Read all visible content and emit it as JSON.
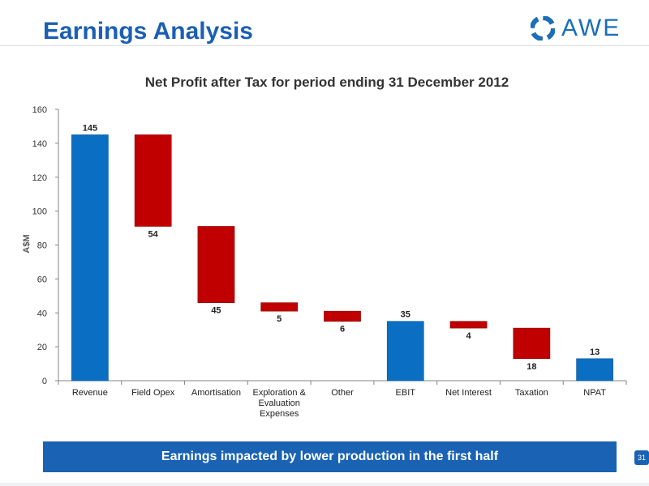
{
  "slide": {
    "title": "Earnings Analysis",
    "logo_text": "AWE",
    "banner": "Earnings impacted by lower production in the first half",
    "page_number": "31"
  },
  "colors": {
    "title": "#1a5fb4",
    "total_bar": "#0a6fc2",
    "decrease_bar": "#c00000",
    "banner": "#1a62b3"
  },
  "chart_data": {
    "type": "bar",
    "subtype": "waterfall",
    "title": "Net Profit after Tax for period ending 31 December 2012",
    "ylabel": "A$M",
    "xlabel": "",
    "ylim": [
      0,
      160
    ],
    "yticks": [
      0,
      20,
      40,
      60,
      80,
      100,
      120,
      140,
      160
    ],
    "grid": false,
    "categories": [
      [
        "Revenue"
      ],
      [
        "Field Opex"
      ],
      [
        "Amortisation"
      ],
      [
        "Exploration &",
        "Evaluation",
        "Expenses"
      ],
      [
        "Other"
      ],
      [
        "EBIT"
      ],
      [
        "Net Interest"
      ],
      [
        "Taxation"
      ],
      [
        "NPAT"
      ]
    ],
    "bars": [
      {
        "kind": "total",
        "start": 0,
        "end": 145,
        "label": "145",
        "label_pos": "above"
      },
      {
        "kind": "decrease",
        "start": 145,
        "end": 91,
        "label": "54",
        "label_pos": "below"
      },
      {
        "kind": "decrease",
        "start": 91,
        "end": 46,
        "label": "45",
        "label_pos": "below"
      },
      {
        "kind": "decrease",
        "start": 46,
        "end": 41,
        "label": "5",
        "label_pos": "below"
      },
      {
        "kind": "decrease",
        "start": 41,
        "end": 35,
        "label": "6",
        "label_pos": "below"
      },
      {
        "kind": "total",
        "start": 0,
        "end": 35,
        "label": "35",
        "label_pos": "above"
      },
      {
        "kind": "decrease",
        "start": 35,
        "end": 31,
        "label": "4",
        "label_pos": "below"
      },
      {
        "kind": "decrease",
        "start": 31,
        "end": 13,
        "label": "18",
        "label_pos": "below"
      },
      {
        "kind": "total",
        "start": 0,
        "end": 13,
        "label": "13",
        "label_pos": "above"
      }
    ]
  }
}
